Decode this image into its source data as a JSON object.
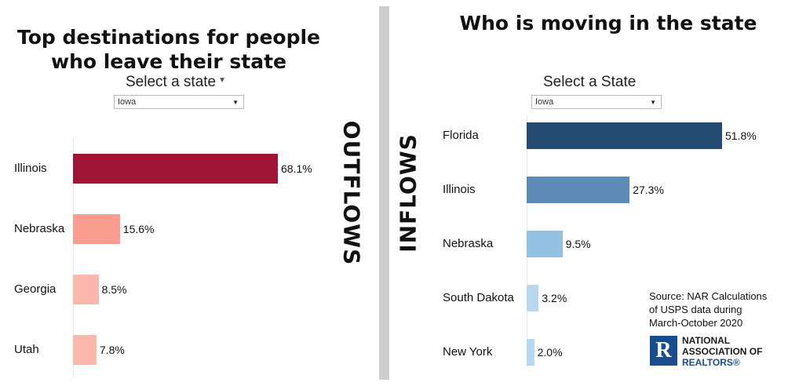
{
  "outflows": {
    "title": "Top destinations for people who leave their state",
    "title_line1": "Top destinations for people",
    "title_line2": "who leave their state",
    "selector_label": "Select a state",
    "selected_state": "Iowa",
    "side_label": "OUTFLOWS"
  },
  "inflows": {
    "title": "Who is moving in the state",
    "selector_label": "Select a State",
    "selected_state": "Iowa",
    "side_label": "INFLOWS"
  },
  "source": {
    "line1": "Source: NAR Calculations",
    "line2": "of USPS data during",
    "line3": "March-October 2020"
  },
  "logo": {
    "mark": "R",
    "line1": "NATIONAL",
    "line2": "ASSOCIATION OF",
    "line3": "REALTORS®"
  },
  "chart_data": [
    {
      "type": "bar",
      "orientation": "horizontal",
      "title": "Top destinations for people who leave their state",
      "categories": [
        "Illinois",
        "Nebraska",
        "Georgia",
        "Utah"
      ],
      "values": [
        68.1,
        15.6,
        8.5,
        7.8
      ],
      "value_labels": [
        "68.1%",
        "15.6%",
        "8.5%",
        "7.8%"
      ],
      "colors": [
        "#a01535",
        "#fb9c91",
        "#fcb7ad",
        "#fcb7ad"
      ],
      "unit": "%",
      "xlim": [
        0,
        68.1
      ]
    },
    {
      "type": "bar",
      "orientation": "horizontal",
      "title": "Who is moving in the state",
      "categories": [
        "Florida",
        "Illinois",
        "Nebraska",
        "South Dakota",
        "New York"
      ],
      "values": [
        51.8,
        27.3,
        9.5,
        3.2,
        2.0
      ],
      "value_labels": [
        "51.8%",
        "27.3%",
        "9.5%",
        "3.2%",
        "2.0%"
      ],
      "colors": [
        "#264b73",
        "#5b8bb6",
        "#93c1e1",
        "#b7d8ef",
        "#b7d8ef"
      ],
      "unit": "%",
      "xlim": [
        0,
        51.8
      ]
    }
  ]
}
